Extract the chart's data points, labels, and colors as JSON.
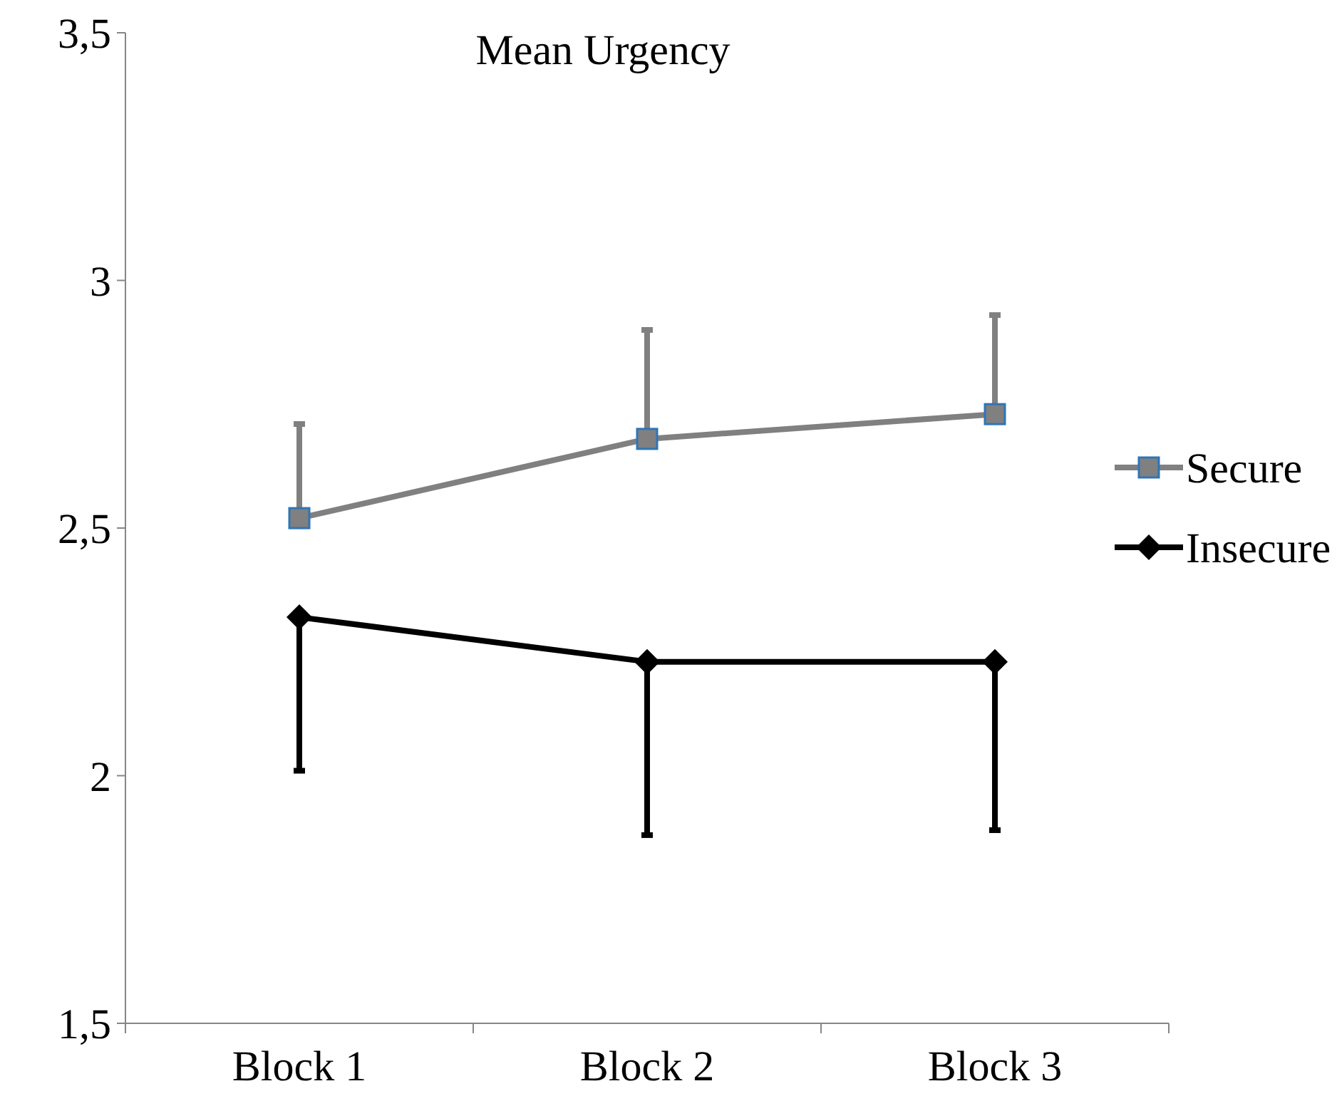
{
  "chart_data": {
    "type": "line",
    "title": "Mean Urgency",
    "categories": [
      "Block 1",
      "Block 2",
      "Block 3"
    ],
    "series": [
      {
        "name": "Secure",
        "color": "#808080",
        "marker": "square",
        "values": [
          2.52,
          2.68,
          2.73
        ],
        "errors": [
          [
            2.52,
            2.71
          ],
          [
            2.68,
            2.9
          ],
          [
            2.73,
            2.93
          ]
        ]
      },
      {
        "name": "Insecure",
        "color": "#000000",
        "marker": "diamond",
        "values": [
          2.32,
          2.23,
          2.23
        ],
        "errors": [
          [
            2.01,
            2.32
          ],
          [
            1.88,
            2.23
          ],
          [
            1.89,
            2.23
          ]
        ]
      }
    ],
    "ylim": [
      1.5,
      3.5
    ],
    "yticks": [
      {
        "value": 1.5,
        "label": "1,5"
      },
      {
        "value": 2,
        "label": "2"
      },
      {
        "value": 2.5,
        "label": "2,5"
      },
      {
        "value": 3,
        "label": "3"
      },
      {
        "value": 3.5,
        "label": "3,5"
      }
    ],
    "grid": false,
    "legend": "right",
    "line_style": "solid"
  }
}
